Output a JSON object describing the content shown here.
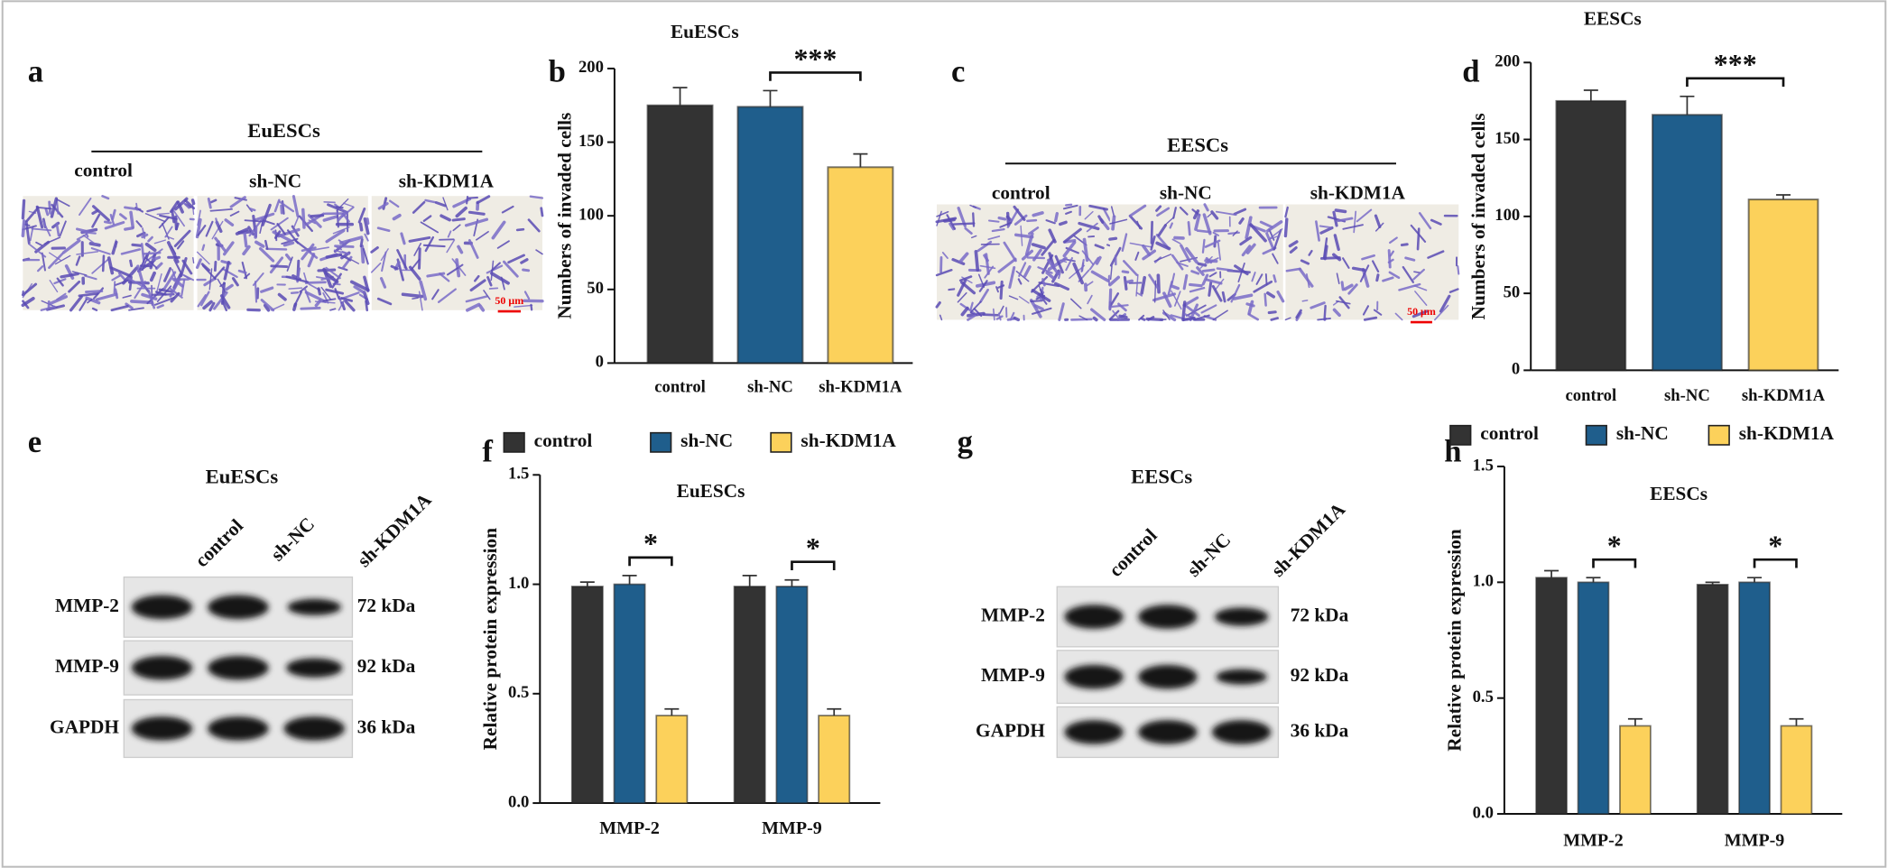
{
  "panel_labels": [
    "a",
    "b",
    "c",
    "d",
    "e",
    "f",
    "g",
    "h"
  ],
  "micrographs": [
    {
      "title": "EuESCs",
      "labels": [
        "control",
        "sh-NC",
        "sh-KDM1A"
      ],
      "scale_bar": "50 μm"
    },
    {
      "title": "EESCs",
      "labels": [
        "control",
        "sh-NC",
        "sh-KDM1A"
      ],
      "scale_bar": "50 μm"
    }
  ],
  "blots": [
    {
      "title": "EuESCs",
      "lanes": [
        "control",
        "sh-NC",
        "sh-KDM1A"
      ],
      "rows": [
        {
          "name": "MMP-2",
          "size": "72 kDa"
        },
        {
          "name": "MMP-9",
          "size": "92 kDa"
        },
        {
          "name": "GAPDH",
          "size": "36 kDa"
        }
      ]
    },
    {
      "title": "EESCs",
      "lanes": [
        "control",
        "sh-NC",
        "sh-KDM1A"
      ],
      "rows": [
        {
          "name": "MMP-2",
          "size": "72 kDa"
        },
        {
          "name": "MMP-9",
          "size": "92 kDa"
        },
        {
          "name": "GAPDH",
          "size": "36 kDa"
        }
      ]
    }
  ],
  "chart_data": [
    {
      "type": "bar",
      "title": "EuESCs",
      "ylabel": "Numbers of invaded cells",
      "categories": [
        "control",
        "sh-NC",
        "sh-KDM1A"
      ],
      "values": [
        175,
        174,
        133
      ],
      "errors": [
        12,
        11,
        9
      ],
      "colors": [
        "#333333",
        "#1f5e8c",
        "#fcd15b"
      ],
      "significance": "***",
      "ylim": [
        0,
        200
      ],
      "yticks": [
        0,
        50,
        100,
        150,
        200
      ]
    },
    {
      "type": "bar",
      "title": "EESCs",
      "ylabel": "Numbers of invaded cells",
      "categories": [
        "control",
        "sh-NC",
        "sh-KDM1A"
      ],
      "values": [
        175,
        166,
        111
      ],
      "errors": [
        7,
        12,
        3
      ],
      "colors": [
        "#333333",
        "#1f5e8c",
        "#fcd15b"
      ],
      "significance": "***",
      "ylim": [
        0,
        200
      ],
      "yticks": [
        0,
        50,
        100,
        150,
        200
      ]
    },
    {
      "type": "grouped-bar",
      "title": "EuESCs",
      "ylabel": "Relative protein expression",
      "categories": [
        "MMP-2",
        "MMP-9"
      ],
      "series": [
        {
          "name": "control",
          "color": "#333333",
          "values": [
            0.99,
            0.99
          ],
          "errors": [
            0.02,
            0.05
          ]
        },
        {
          "name": "sh-NC",
          "color": "#1f5e8c",
          "values": [
            1.0,
            0.99
          ],
          "errors": [
            0.04,
            0.03
          ]
        },
        {
          "name": "sh-KDM1A",
          "color": "#fcd15b",
          "values": [
            0.4,
            0.4
          ],
          "errors": [
            0.03,
            0.03
          ]
        }
      ],
      "significance": [
        "*",
        "*"
      ],
      "legend": "top",
      "ylim": [
        0,
        1.5
      ],
      "yticks": [
        {
          "value": 0,
          "label": "0.0"
        },
        {
          "value": 0.5,
          "label": "0.5"
        },
        {
          "value": 1,
          "label": "1.0"
        },
        {
          "value": 1.5,
          "label": "1.5"
        }
      ]
    },
    {
      "type": "grouped-bar",
      "title": "EESCs",
      "ylabel": "Relative protein expression",
      "categories": [
        "MMP-2",
        "MMP-9"
      ],
      "series": [
        {
          "name": "control",
          "color": "#333333",
          "values": [
            1.02,
            0.99
          ],
          "errors": [
            0.03,
            0.01
          ]
        },
        {
          "name": "sh-NC",
          "color": "#1f5e8c",
          "values": [
            1.0,
            1.0
          ],
          "errors": [
            0.02,
            0.02
          ]
        },
        {
          "name": "sh-KDM1A",
          "color": "#fcd15b",
          "values": [
            0.38,
            0.38
          ],
          "errors": [
            0.03,
            0.03
          ]
        }
      ],
      "significance": [
        "*",
        "*"
      ],
      "legend": "top",
      "ylim": [
        0,
        1.5
      ],
      "yticks": [
        {
          "value": 0,
          "label": "0.0"
        },
        {
          "value": 0.5,
          "label": "0.5"
        },
        {
          "value": 1,
          "label": "1.0"
        },
        {
          "value": 1.5,
          "label": "1.5"
        }
      ]
    }
  ]
}
